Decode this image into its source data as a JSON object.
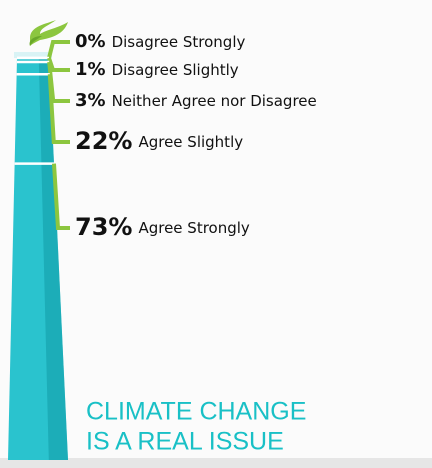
{
  "chart_data": {
    "type": "chimney",
    "title_lines": [
      "CLIMATE CHANGE",
      "IS A REAL ISSUE"
    ],
    "categories": [
      "Disagree Strongly",
      "Disagree Slightly",
      "Neither Agree nor Disagree",
      "Agree Slightly",
      "Agree Strongly"
    ],
    "values": [
      0,
      1,
      3,
      22,
      73
    ],
    "value_labels": [
      "0%",
      "1%",
      "3%",
      "22%",
      "73%"
    ],
    "color": "#2ac3ce",
    "accent_color": "#8cc63f",
    "title_color": "#19c0c6"
  }
}
